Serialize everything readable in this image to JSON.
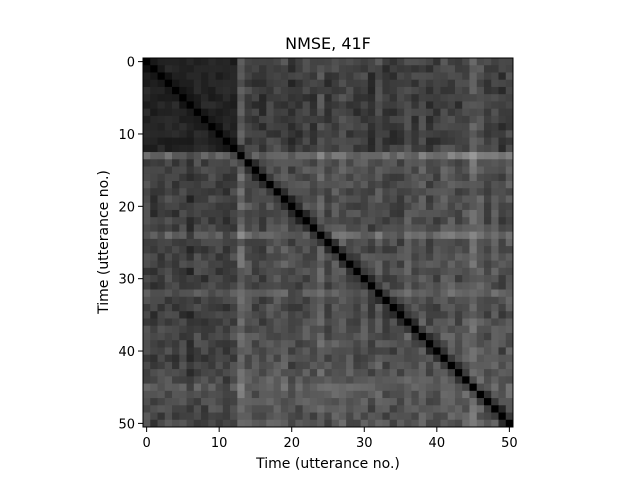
{
  "chart_data": {
    "type": "heatmap",
    "title": "NMSE, 41F",
    "xlabel": "Time (utterance no.)",
    "ylabel": "Time (utterance no.)",
    "n": 51,
    "xlim": [
      0,
      50
    ],
    "ylim": [
      50,
      0
    ],
    "xticks": [
      0,
      10,
      20,
      30,
      40,
      50
    ],
    "yticks": [
      0,
      10,
      20,
      30,
      40,
      50
    ],
    "colormap": "gray",
    "diagonal_value": 0.0,
    "bright_rows": [
      13,
      24,
      32,
      45
    ],
    "dark_block": [
      0,
      12
    ],
    "band_rows": [
      0.22,
      0.2,
      0.18,
      0.17,
      0.17,
      0.18,
      0.16,
      0.17,
      0.16,
      0.18,
      0.18,
      0.19,
      0.2,
      0.55,
      0.32,
      0.33,
      0.3,
      0.3,
      0.28,
      0.3,
      0.3,
      0.28,
      0.27,
      0.3,
      0.48,
      0.3,
      0.3,
      0.32,
      0.33,
      0.3,
      0.28,
      0.3,
      0.42,
      0.3,
      0.28,
      0.27,
      0.3,
      0.32,
      0.33,
      0.32,
      0.3,
      0.3,
      0.33,
      0.34,
      0.36,
      0.46,
      0.38,
      0.36,
      0.35,
      0.33,
      0.34
    ],
    "grid": false,
    "colors": {
      "diagonal": "#000000",
      "frame": "#000000",
      "background": "#ffffff"
    }
  }
}
